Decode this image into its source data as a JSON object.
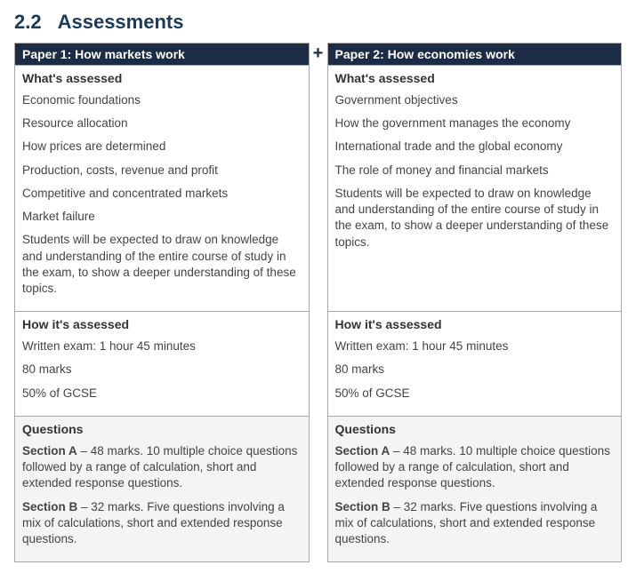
{
  "heading": {
    "number": "2.2",
    "title": "Assessments"
  },
  "plus": "+",
  "labels": {
    "whats": "What's assessed",
    "how": "How it's assessed",
    "questions": "Questions"
  },
  "paper1": {
    "title": "Paper 1: How markets work",
    "whats": [
      "Economic foundations",
      "Resource allocation",
      "How prices are determined",
      "Production, costs, revenue and profit",
      "Competitive and concentrated markets",
      "Market failure",
      "Students will be expected to draw on knowledge and understanding of the entire course of study in the exam, to show a deeper understanding of these topics."
    ],
    "how": [
      "Written exam: 1 hour 45 minutes",
      "80 marks",
      "50% of GCSE"
    ],
    "questions": [
      {
        "lead": "Section A",
        "text": " – 48 marks. 10 multiple choice questions followed by a range of calculation, short and extended response questions."
      },
      {
        "lead": "Section B",
        "text": " – 32 marks. Five questions involving a mix of calculations, short and extended response questions."
      }
    ]
  },
  "paper2": {
    "title": "Paper 2: How economies work",
    "whats": [
      "Government objectives",
      "How the government manages the economy",
      "International trade and the global economy",
      "The role of money and financial markets",
      "Students will be expected to draw on knowledge and understanding of the entire course of study in the exam, to show a deeper understanding of these topics."
    ],
    "how": [
      "Written exam: 1 hour 45 minutes",
      "80 marks",
      "50% of GCSE"
    ],
    "questions": [
      {
        "lead": "Section A",
        "text": " – 48 marks. 10 multiple choice questions followed by a range of calculation, short and extended response questions."
      },
      {
        "lead": "Section B",
        "text": " – 32 marks. Five questions involving a mix of calculations, short and extended response questions."
      }
    ]
  },
  "colors": {
    "heading": "#1c3a5e",
    "header_bg": "#1c2c44",
    "border": "#a8a8a8",
    "questions_bg": "#f4f4f2",
    "text": "#444444"
  }
}
